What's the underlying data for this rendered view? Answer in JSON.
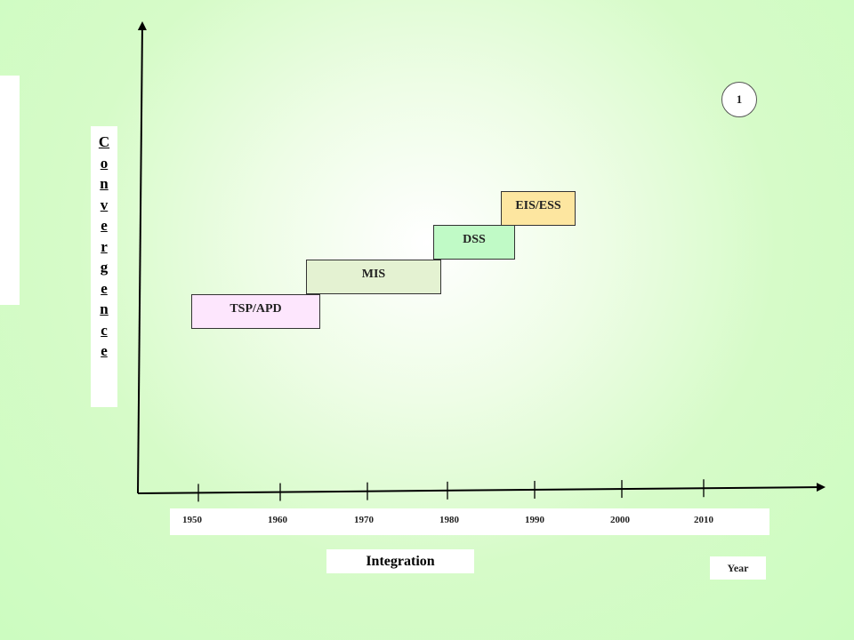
{
  "slide_number": "1",
  "y_axis_label": "Convergence",
  "x_axis_title": "Integration",
  "x_unit_label": "Year",
  "years": [
    "1950",
    "1960",
    "1970",
    "1980",
    "1990",
    "2000",
    "2010"
  ],
  "eras": [
    {
      "label": "TSP/APD",
      "color": "#fde6fd"
    },
    {
      "label": "MIS",
      "color": "#e4f2d2"
    },
    {
      "label": "DSS",
      "color": "#c0fac6"
    },
    {
      "label": "EIS/ESS",
      "color": "#fde6a0"
    }
  ]
}
